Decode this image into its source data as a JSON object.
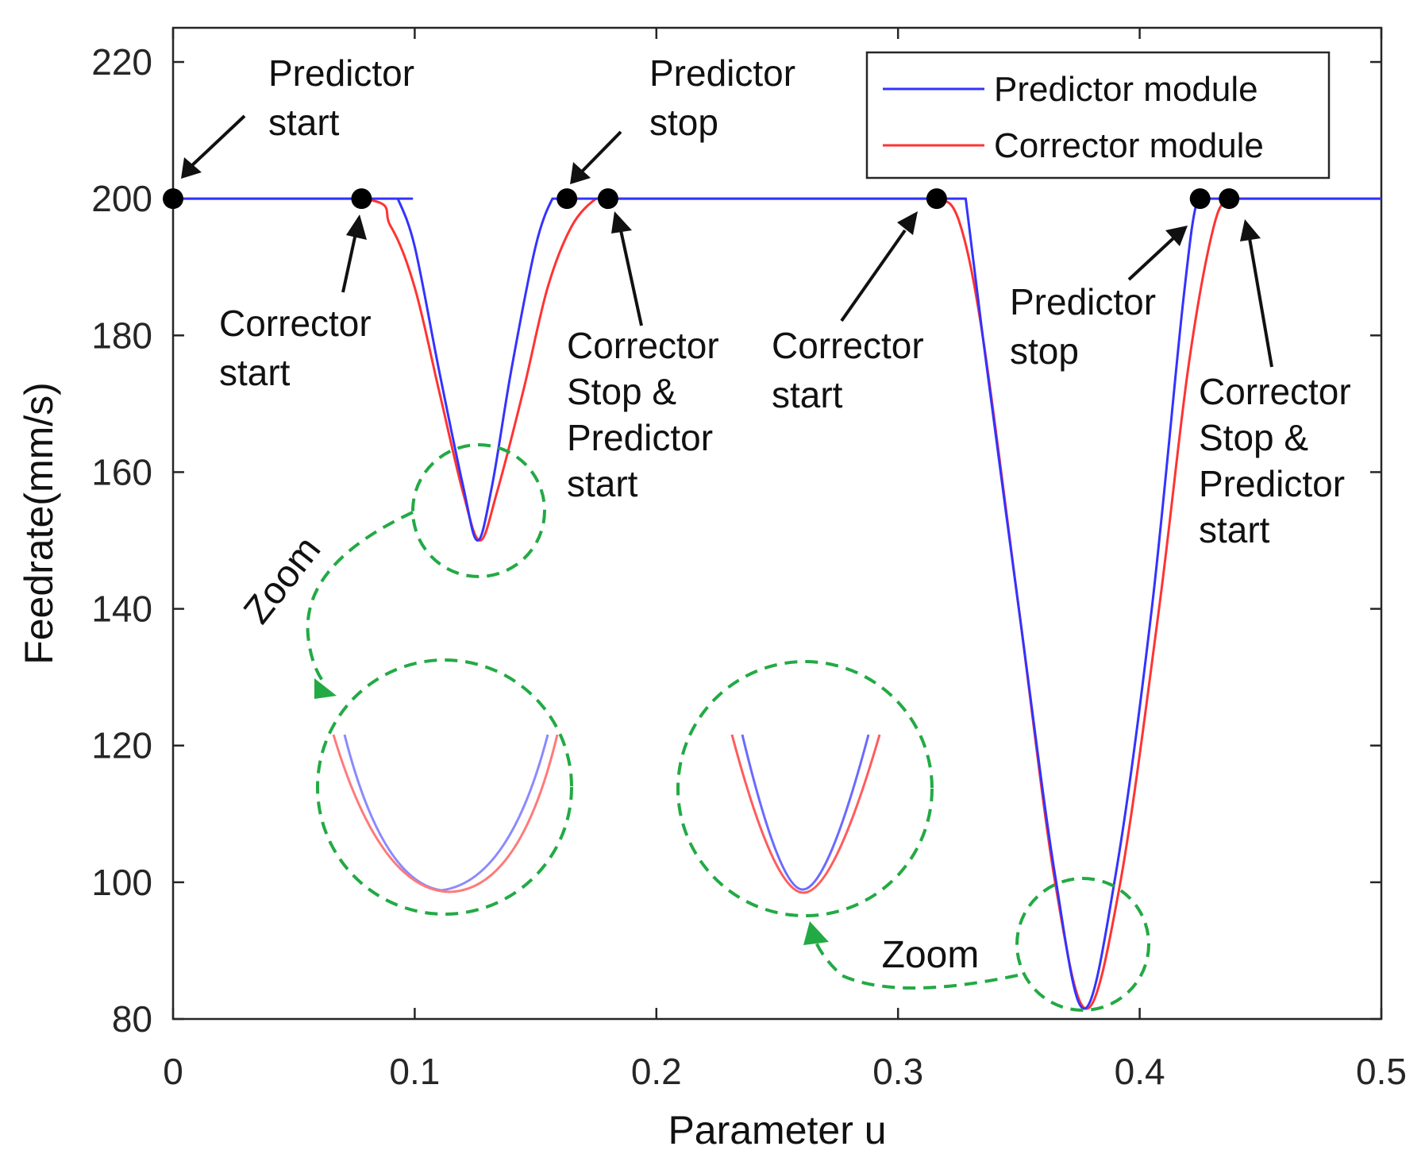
{
  "chart_data": {
    "type": "line",
    "xlabel": "Parameter u",
    "ylabel": "Feedrate(mm/s)",
    "xlim": [
      0,
      0.5
    ],
    "ylim": [
      80,
      225
    ],
    "xticks": [
      0,
      0.1,
      0.2,
      0.3,
      0.4,
      0.5
    ],
    "xtick_labels": [
      "0",
      "0.1",
      "0.2",
      "0.3",
      "0.4",
      "0.5"
    ],
    "yticks": [
      80,
      100,
      120,
      140,
      160,
      180,
      200,
      220
    ],
    "ytick_labels": [
      "80",
      "100",
      "120",
      "140",
      "160",
      "180",
      "200",
      "220"
    ],
    "grid": false,
    "legend_position": "top-right",
    "series": [
      {
        "name": "Predictor module",
        "color": "#3333ff",
        "x": [
          0,
          0.092,
          0.093,
          0.1,
          0.11,
          0.12,
          0.126,
          0.132,
          0.14,
          0.15,
          0.157,
          0.16,
          0.18,
          0.2,
          0.25,
          0.3,
          0.317,
          0.325,
          0.327,
          0.328,
          0.335,
          0.35,
          0.365,
          0.377,
          0.39,
          0.405,
          0.418,
          0.424,
          0.43,
          0.45,
          0.5
        ],
        "y": [
          200,
          200,
          200,
          193,
          175,
          158,
          150,
          158,
          175,
          193,
          200,
          200,
          200,
          200,
          200,
          200,
          200,
          200,
          200,
          200,
          180,
          140,
          101,
          81.5,
          101,
          140,
          185,
          200,
          200,
          200,
          200
        ]
      },
      {
        "name": "Corrector module",
        "color": "#ff3333",
        "x": [
          0,
          0.078,
          0.09,
          0.1,
          0.11,
          0.12,
          0.127,
          0.134,
          0.145,
          0.155,
          0.165,
          0.175,
          0.18,
          0.2,
          0.25,
          0.3,
          0.316,
          0.325,
          0.335,
          0.35,
          0.365,
          0.378,
          0.392,
          0.408,
          0.42,
          0.43,
          0.437,
          0.45,
          0.5
        ],
        "y": [
          200,
          200,
          196,
          187,
          172,
          157,
          150,
          157,
          172,
          187,
          196,
          200,
          200,
          200,
          200,
          200,
          200,
          197,
          180,
          140,
          100,
          81.5,
          100,
          140,
          175,
          195,
          200,
          200,
          200
        ]
      }
    ],
    "markers": [
      {
        "x": 0,
        "y": 200
      },
      {
        "x": 0.078,
        "y": 200
      },
      {
        "x": 0.163,
        "y": 200
      },
      {
        "x": 0.18,
        "y": 200
      },
      {
        "x": 0.316,
        "y": 200
      },
      {
        "x": 0.425,
        "y": 200
      },
      {
        "x": 0.437,
        "y": 200
      }
    ],
    "annotations": [
      {
        "lines": [
          "Predictor",
          "start"
        ],
        "x": 0,
        "y": 200
      },
      {
        "lines": [
          "Corrector",
          "start"
        ],
        "x": 0.078,
        "y": 200
      },
      {
        "lines": [
          "Predictor",
          "stop"
        ],
        "x": 0.163,
        "y": 200
      },
      {
        "lines": [
          "Corrector",
          "Stop  &",
          "Predictor",
          "start"
        ],
        "x": 0.18,
        "y": 200
      },
      {
        "lines": [
          "Corrector",
          "start"
        ],
        "x": 0.316,
        "y": 200
      },
      {
        "lines": [
          "Predictor",
          "stop"
        ],
        "x": 0.425,
        "y": 200
      },
      {
        "lines": [
          "Corrector",
          "Stop  &",
          "Predictor",
          "start"
        ],
        "x": 0.437,
        "y": 200
      }
    ],
    "zoom_label": "Zoom",
    "zoom_color": "#22aa44",
    "axis_color": "#262626"
  }
}
